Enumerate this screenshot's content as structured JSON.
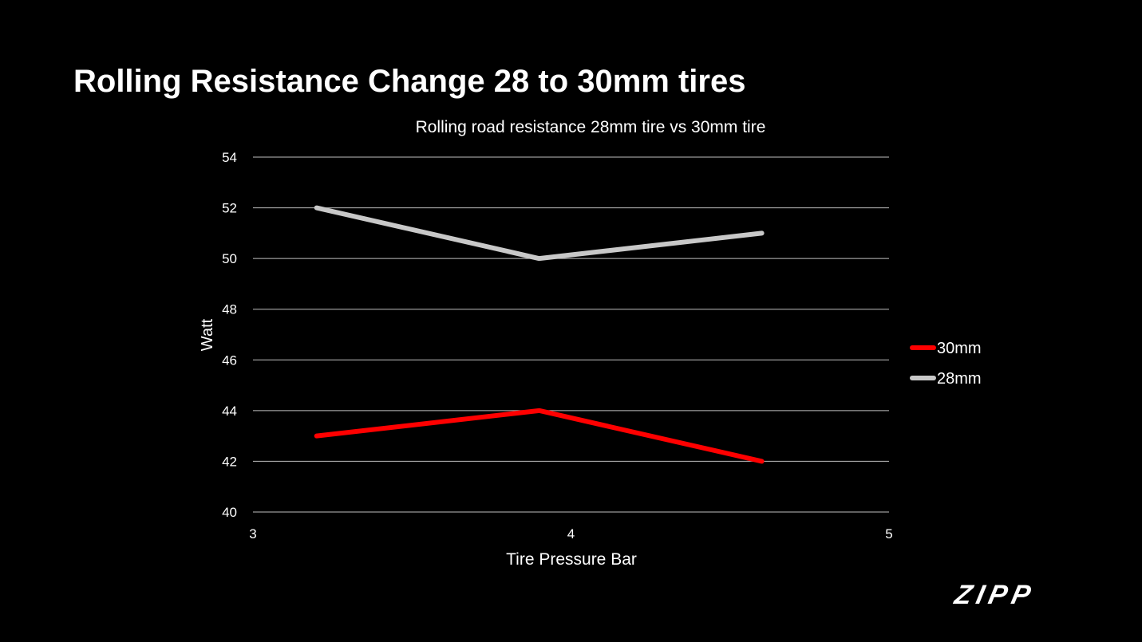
{
  "slide": {
    "title": "Rolling Resistance Change 28 to 30mm tires"
  },
  "brand": {
    "logo_text": "ZIPP"
  },
  "colors": {
    "background": "#000000",
    "text": "#ffffff",
    "grid": "#bfbfbf",
    "series_30mm": "#ff0000",
    "series_28mm": "#c8c8c8"
  },
  "chart_data": {
    "type": "line",
    "title": "Rolling road resistance 28mm tire vs 30mm tire",
    "xlabel": "Tire Pressure Bar",
    "ylabel": "Watt",
    "xlim": [
      3,
      5
    ],
    "ylim": [
      40,
      54
    ],
    "xticks": [
      3,
      4,
      5
    ],
    "yticks": [
      40,
      42,
      44,
      46,
      48,
      50,
      52,
      54
    ],
    "grid": true,
    "legend_position": "right",
    "series": [
      {
        "name": "30mm",
        "color": "#ff0000",
        "x": [
          3.2,
          3.9,
          4.6
        ],
        "y": [
          43,
          44,
          42
        ]
      },
      {
        "name": "28mm",
        "color": "#c8c8c8",
        "x": [
          3.2,
          3.9,
          4.6
        ],
        "y": [
          52,
          50,
          51
        ]
      }
    ]
  }
}
